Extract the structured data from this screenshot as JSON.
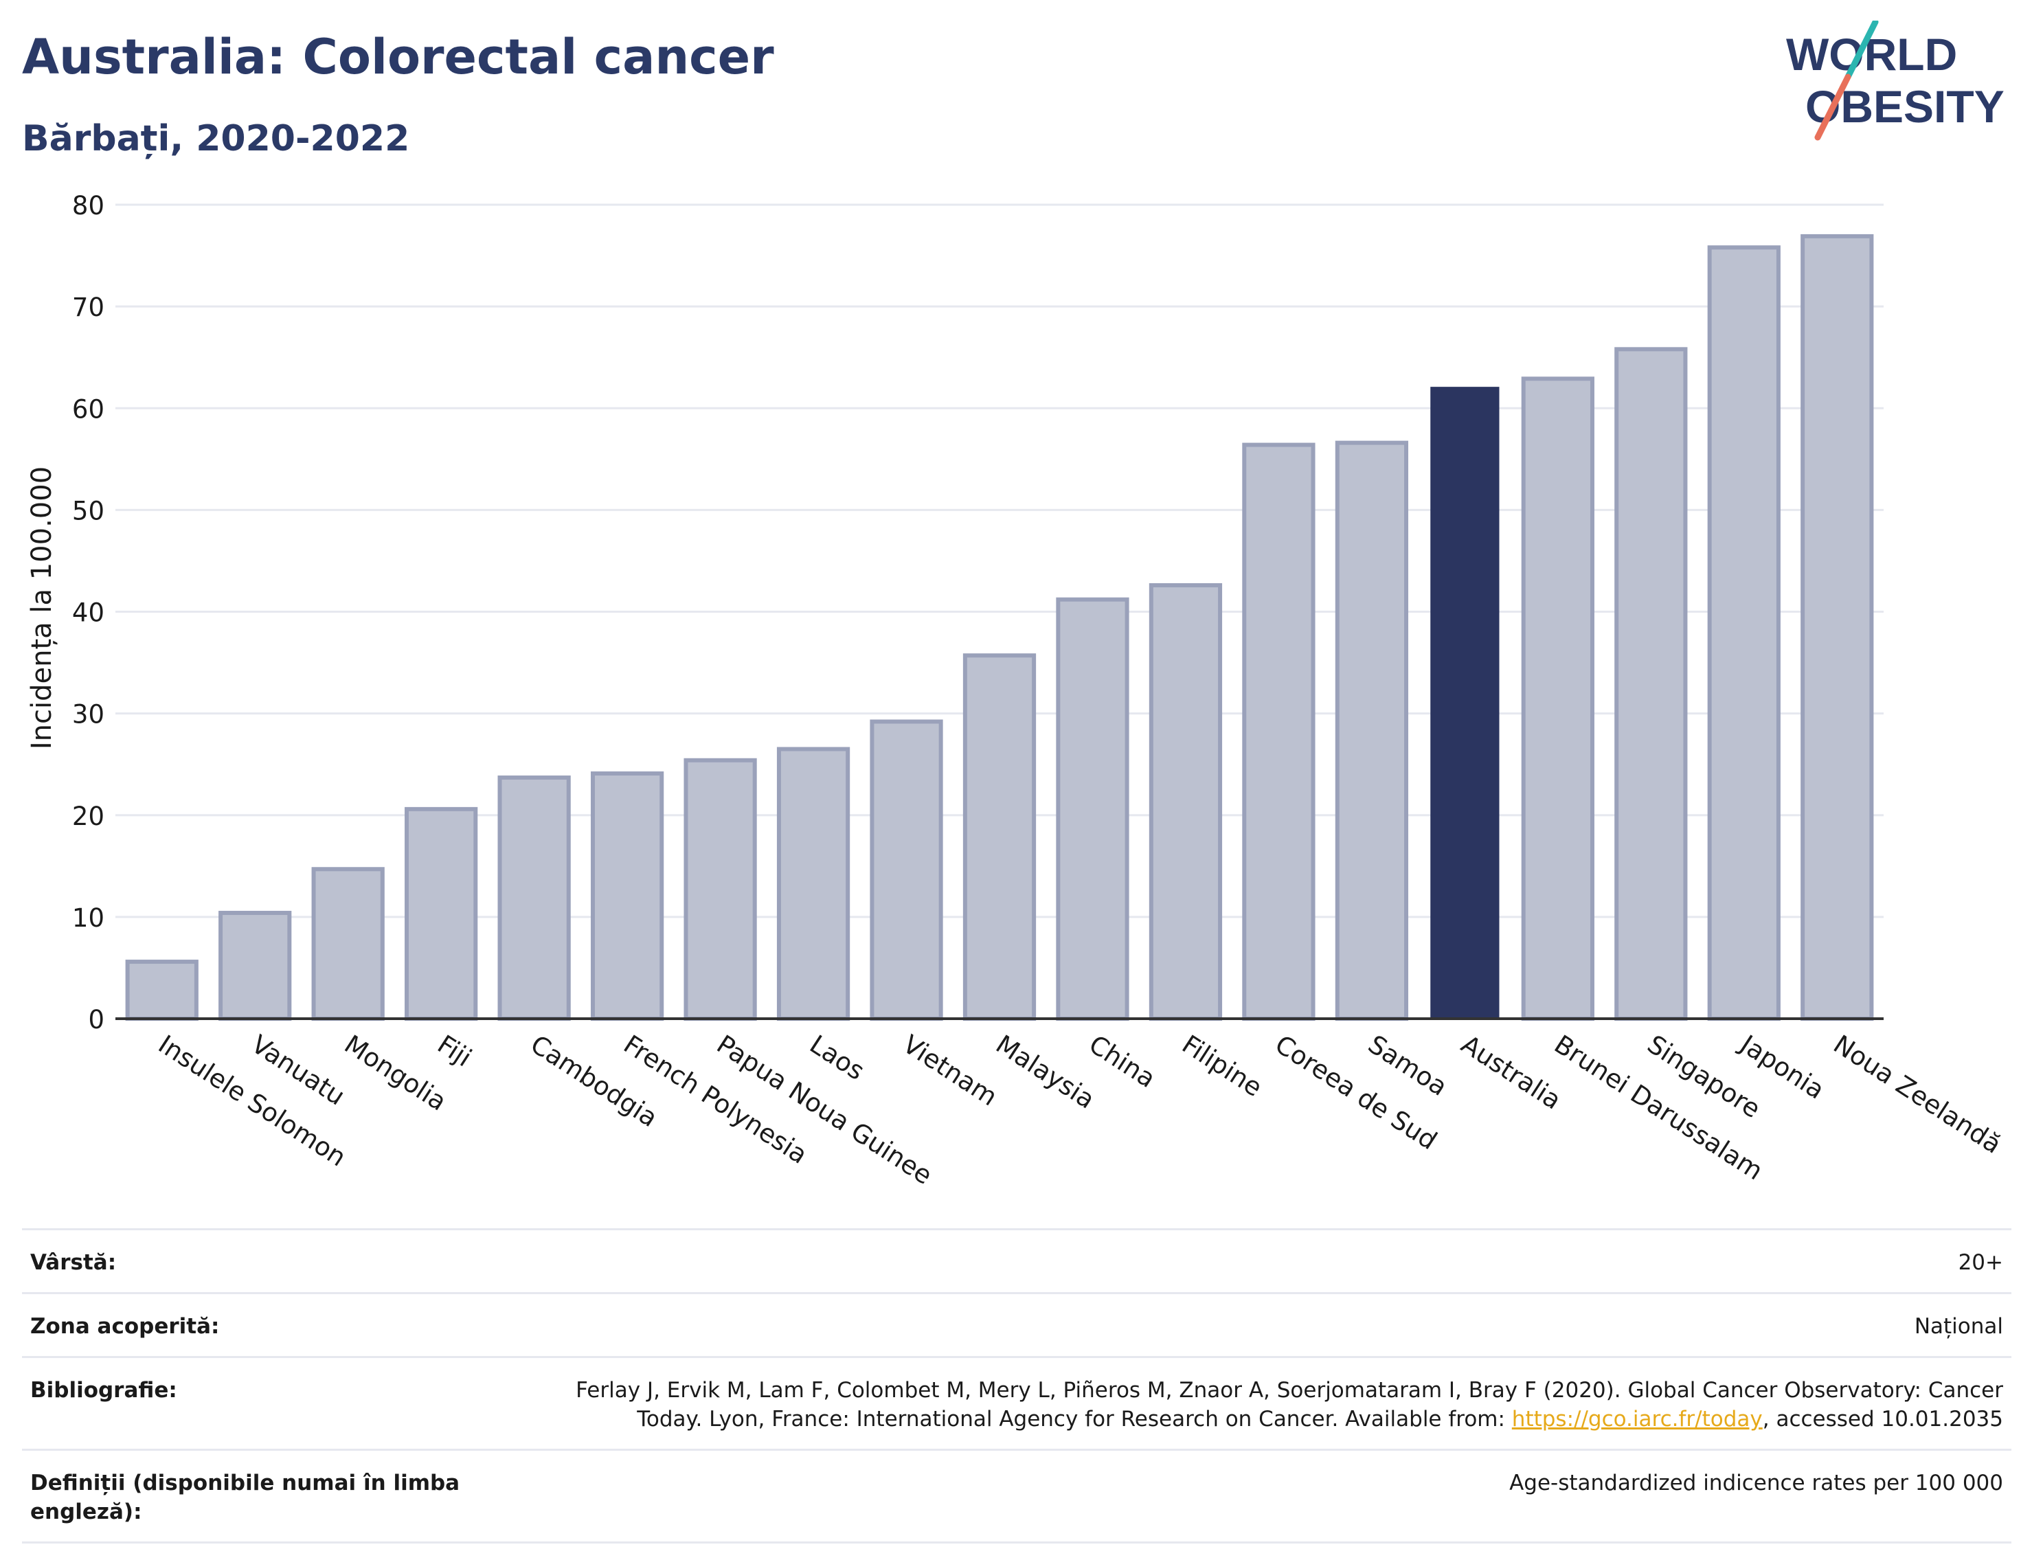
{
  "title": "Australia: Colorectal cancer",
  "subtitle": "Bărbați, 2020-2022",
  "logo": {
    "line1": "WORLD",
    "line2": "OBESITY",
    "colors": {
      "text": "#2b3a67",
      "slash_teal": "#2bb5b0",
      "slash_coral": "#e8705a"
    }
  },
  "colors": {
    "bar": "#bcc1d0",
    "bar_stroke": "#9aa1ba",
    "highlight": "#2b3560",
    "grid": "#e6e8ef",
    "axis": "#333333",
    "text": "#1a1a1a"
  },
  "chart_data": {
    "type": "bar",
    "title": "",
    "xlabel": "",
    "ylabel": "Incidența la 100.000",
    "ylim": [
      0,
      80
    ],
    "yticks": [
      0,
      10,
      20,
      30,
      40,
      50,
      60,
      70,
      80
    ],
    "grid": true,
    "highlight": "Australia",
    "categories": [
      "Insulele Solomon",
      "Vanuatu",
      "Mongolia",
      "Fiji",
      "Cambodgia",
      "French Polynesia",
      "Papua Noua Guinee",
      "Laos",
      "Vietnam",
      "Malaysia",
      "China",
      "Filipine",
      "Coreea de Sud",
      "Samoa",
      "Australia",
      "Brunei Darussalam",
      "Singapore",
      "Japonia",
      "Noua Zeelandă"
    ],
    "values": [
      5.6,
      10.4,
      14.7,
      20.6,
      23.7,
      24.1,
      25.4,
      26.5,
      29.2,
      35.7,
      41.2,
      42.6,
      56.4,
      56.6,
      62.1,
      62.9,
      65.8,
      75.8,
      76.9
    ]
  },
  "info": [
    {
      "label": "Vârstă:",
      "value": "20+"
    },
    {
      "label": "Zona acoperită:",
      "value": "Național"
    },
    {
      "label": "Bibliografie:",
      "value_pre": "Ferlay J, Ervik M, Lam F, Colombet M, Mery L, Piñeros M, Znaor A, Soerjomataram I, Bray F (2020). Global Cancer Observatory: Cancer Today. Lyon, France: International Agency for Research on Cancer. Available from: ",
      "link": "https://gco.iarc.fr/today",
      "value_post": ", accessed 10.01.2035"
    },
    {
      "label": "Definiții (disponibile numai în limba engleză):",
      "value": "Age-standardized indicence rates per 100 000"
    }
  ]
}
